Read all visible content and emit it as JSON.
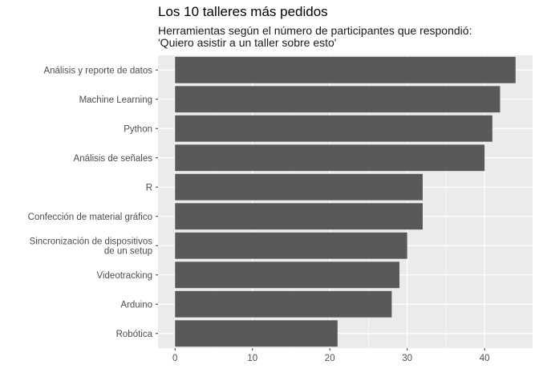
{
  "chart_data": {
    "type": "bar",
    "orientation": "horizontal",
    "title": "Los 10 talleres más pedidos",
    "subtitle": [
      "Herramientas según el número de participantes que respondió:",
      "'Quiero asistir a un taller sobre esto'"
    ],
    "xlabel": "",
    "ylabel": "",
    "categories": [
      [
        "Análisis y reporte de datos"
      ],
      [
        "Machine Learning"
      ],
      [
        "Python"
      ],
      [
        "Análisis de señales"
      ],
      [
        "R"
      ],
      [
        "Confección de material gráfico"
      ],
      [
        "Sincronización de dispositivos",
        "de un setup"
      ],
      [
        "Videotracking"
      ],
      [
        "Arduino"
      ],
      [
        "Robótica"
      ]
    ],
    "values": [
      44,
      42,
      41,
      40,
      32,
      32,
      30,
      29,
      28,
      21
    ],
    "xlim": [
      -2.2,
      46.2
    ],
    "xticks": [
      0,
      10,
      20,
      30,
      40
    ],
    "grid": true,
    "bar_color": "#595959",
    "panel_color": "#ebebeb",
    "legend": "none"
  }
}
